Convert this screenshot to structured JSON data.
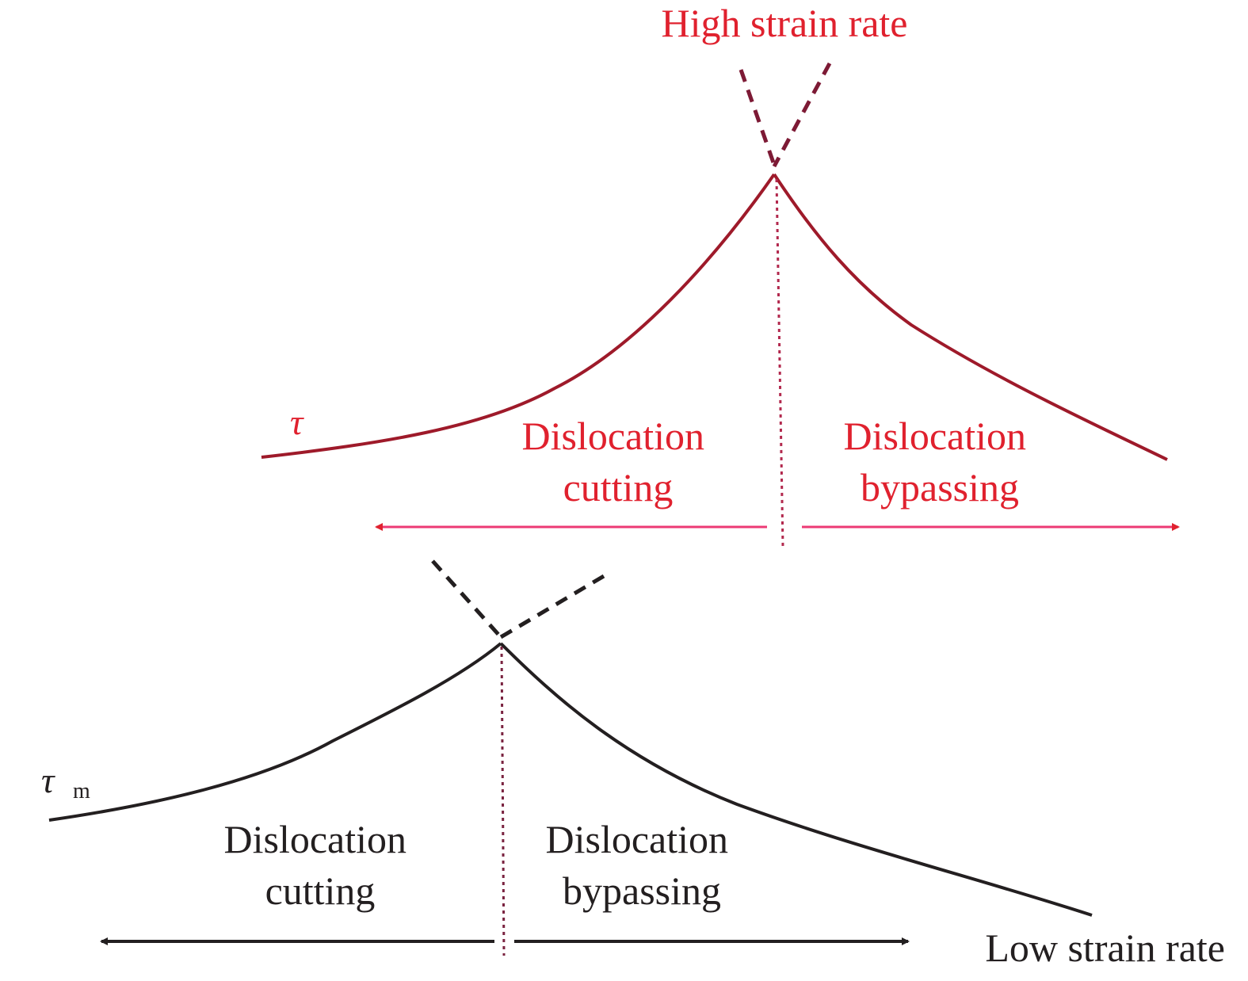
{
  "colors": {
    "high": "#e0212e",
    "high_curve": "#9e1a2a",
    "high_arrow": "#ec3a74",
    "low": "#231f20",
    "divider": "#7a2340"
  },
  "high": {
    "title": "High strain rate",
    "symbol": "τ",
    "left_region": [
      "Dislocation",
      "cutting"
    ],
    "right_region": [
      "Dislocation",
      "bypassing"
    ]
  },
  "low": {
    "title": "Low strain rate",
    "symbol": "τ",
    "subscript": "m",
    "left_region": [
      "Dislocation",
      "cutting"
    ],
    "right_region": [
      "Dislocation",
      "bypassing"
    ]
  }
}
